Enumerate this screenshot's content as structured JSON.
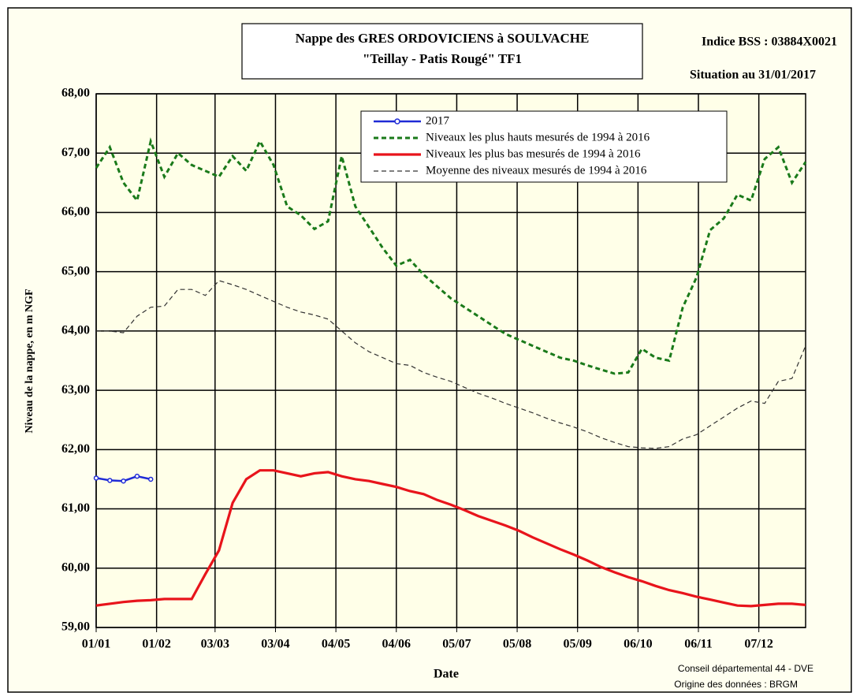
{
  "chart_data": {
    "type": "line",
    "title": "Nappe des GRES ORDOVICIENS à SOULVACHE",
    "subtitle": "\"Teillay - Patis Rougé\" TF1",
    "bss_index": "Indice BSS : 03884X0021",
    "situation": "Situation au 31/01/2017",
    "y_label": "Niveau de la nappe, en m NGF",
    "x_label": "Date",
    "credit_1": "Conseil départemental 44 - DVE",
    "credit_2": "Origine des données : BRGM",
    "grid": true,
    "legend_position": "top",
    "xlim": [
      "01/01",
      "31/12"
    ],
    "xticks": [
      "01/01",
      "01/02",
      "03/03",
      "03/04",
      "04/05",
      "04/06",
      "05/07",
      "05/08",
      "05/09",
      "06/10",
      "06/11",
      "07/12"
    ],
    "ylim": [
      59,
      68
    ],
    "yticks": [
      {
        "value": 59,
        "label": "59,00"
      },
      {
        "value": 60,
        "label": "60,00"
      },
      {
        "value": 61,
        "label": "61,00"
      },
      {
        "value": 62,
        "label": "62,00"
      },
      {
        "value": 63,
        "label": "63,00"
      },
      {
        "value": 64,
        "label": "64,00"
      },
      {
        "value": 65,
        "label": "65,00"
      },
      {
        "value": 66,
        "label": "66,00"
      },
      {
        "value": 67,
        "label": "67,00"
      },
      {
        "value": 68,
        "label": "68,00"
      }
    ],
    "x": [
      "01/01",
      "08/01",
      "15/01",
      "22/01",
      "29/01",
      "05/02",
      "12/02",
      "19/02",
      "26/02",
      "05/03",
      "12/03",
      "19/03",
      "26/03",
      "02/04",
      "09/04",
      "16/04",
      "23/04",
      "30/04",
      "07/05",
      "14/05",
      "21/05",
      "28/05",
      "04/06",
      "11/06",
      "18/06",
      "25/06",
      "02/07",
      "09/07",
      "16/07",
      "23/07",
      "30/07",
      "06/08",
      "13/08",
      "20/08",
      "27/08",
      "03/09",
      "10/09",
      "17/09",
      "24/09",
      "01/10",
      "08/10",
      "15/10",
      "22/10",
      "29/10",
      "05/11",
      "12/11",
      "19/11",
      "26/11",
      "03/12",
      "10/12",
      "17/12",
      "24/12",
      "31/12"
    ],
    "series": [
      {
        "name": "2017",
        "color": "#1f2bd6",
        "line_style": "solid",
        "marker": "circle",
        "values": [
          61.52,
          61.48,
          61.47,
          61.55,
          61.5,
          null,
          null,
          null,
          null,
          null,
          null,
          null,
          null,
          null,
          null,
          null,
          null,
          null,
          null,
          null,
          null,
          null,
          null,
          null,
          null,
          null,
          null,
          null,
          null,
          null,
          null,
          null,
          null,
          null,
          null,
          null,
          null,
          null,
          null,
          null,
          null,
          null,
          null,
          null,
          null,
          null,
          null,
          null,
          null,
          null,
          null,
          null,
          null
        ]
      },
      {
        "name": "Niveaux les plus hauts mesurés de 1994 à 2016",
        "color": "#1a7a1a",
        "line_style": "dashed",
        "values": [
          66.75,
          67.1,
          66.5,
          66.2,
          67.2,
          66.6,
          67.0,
          66.8,
          66.7,
          66.6,
          66.95,
          66.7,
          67.2,
          66.8,
          66.1,
          65.95,
          65.72,
          65.85,
          66.95,
          66.1,
          65.75,
          65.4,
          65.1,
          65.2,
          64.95,
          64.75,
          64.55,
          64.4,
          64.25,
          64.1,
          63.95,
          63.85,
          63.75,
          63.65,
          63.55,
          63.5,
          63.42,
          63.35,
          63.28,
          63.3,
          63.7,
          63.55,
          63.5,
          64.4,
          64.9,
          65.7,
          65.9,
          66.3,
          66.2,
          66.9,
          67.1,
          66.5,
          66.85
        ]
      },
      {
        "name": "Niveaux les plus bas mesurés de 1994 à 2016",
        "color": "#e8141b",
        "line_style": "solid",
        "values": [
          59.37,
          59.4,
          59.43,
          59.45,
          59.46,
          59.48,
          59.48,
          59.48,
          59.9,
          60.3,
          61.1,
          61.5,
          61.65,
          61.65,
          61.6,
          61.55,
          61.6,
          61.62,
          61.55,
          61.5,
          61.47,
          61.42,
          61.37,
          61.3,
          61.25,
          61.15,
          61.07,
          60.98,
          60.88,
          60.8,
          60.72,
          60.63,
          60.52,
          60.42,
          60.32,
          60.23,
          60.13,
          60.02,
          59.93,
          59.85,
          59.78,
          59.7,
          59.63,
          59.58,
          59.52,
          59.47,
          59.42,
          59.37,
          59.36,
          59.38,
          59.4,
          59.4,
          59.38
        ]
      },
      {
        "name": "Moyenne des niveaux mesurés de 1994 à 2016",
        "color": "#333333",
        "line_style": "dashed",
        "values": [
          64.0,
          64.0,
          63.97,
          64.25,
          64.4,
          64.42,
          64.7,
          64.7,
          64.6,
          64.85,
          64.78,
          64.7,
          64.6,
          64.5,
          64.4,
          64.32,
          64.27,
          64.2,
          64.0,
          63.8,
          63.65,
          63.55,
          63.45,
          63.42,
          63.3,
          63.22,
          63.15,
          63.05,
          62.95,
          62.87,
          62.78,
          62.7,
          62.62,
          62.53,
          62.45,
          62.38,
          62.3,
          62.2,
          62.12,
          62.05,
          62.03,
          62.02,
          62.05,
          62.18,
          62.25,
          62.4,
          62.55,
          62.7,
          62.82,
          62.78,
          63.15,
          63.2,
          63.75
        ]
      }
    ]
  }
}
